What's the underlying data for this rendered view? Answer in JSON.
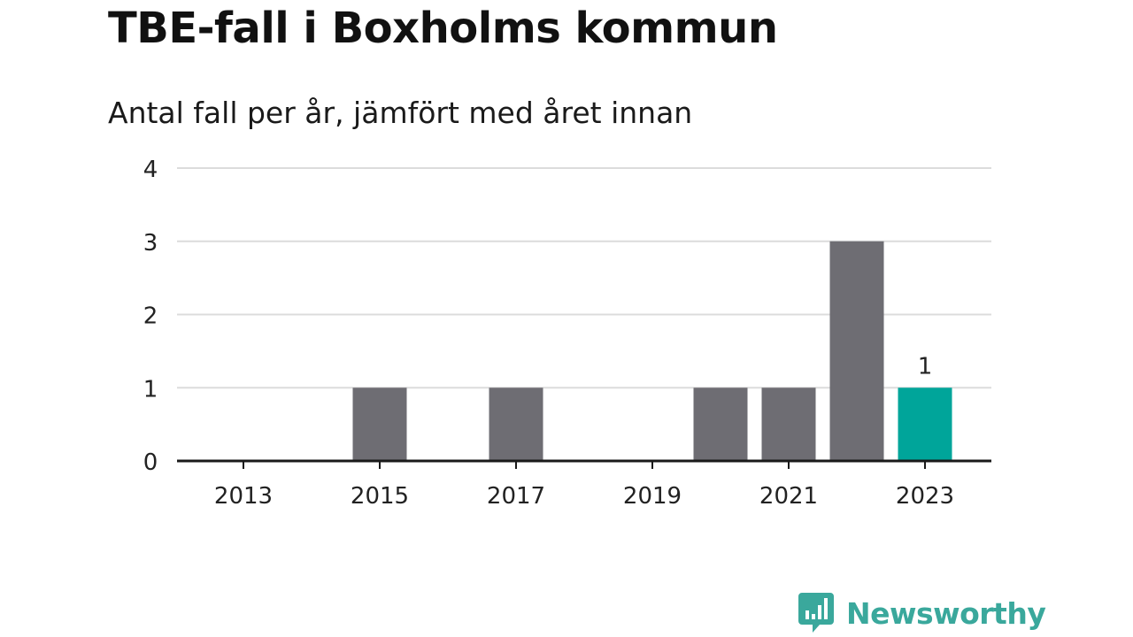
{
  "title": "TBE-fall i Boxholms kommun",
  "subtitle": "Antal fall per år, jämfört med året innan",
  "brand": {
    "name": "Newsworthy",
    "icon": "bar-chart-speech-bubble-icon",
    "color": "#3aa89c"
  },
  "colors": {
    "bar": "#6e6d73",
    "highlight": "#00a59a",
    "grid": "#dcdcdc",
    "axis": "#1a1a1a",
    "text": "#222222"
  },
  "chart_data": {
    "type": "bar",
    "categories": [
      "2013",
      "2014",
      "2015",
      "2016",
      "2017",
      "2018",
      "2019",
      "2020",
      "2021",
      "2022",
      "2023"
    ],
    "values": [
      0,
      0,
      1,
      0,
      1,
      0,
      0,
      1,
      1,
      3,
      1
    ],
    "xticks": [
      "2013",
      "2015",
      "2017",
      "2019",
      "2021",
      "2023"
    ],
    "yticks": [
      0,
      1,
      2,
      3,
      4
    ],
    "ylim": [
      0,
      4
    ],
    "highlight_category": "2023",
    "data_labels": [
      {
        "category": "2023",
        "text": "1"
      }
    ],
    "xlabel": "",
    "ylabel": "",
    "grid": true,
    "legend": "none"
  }
}
